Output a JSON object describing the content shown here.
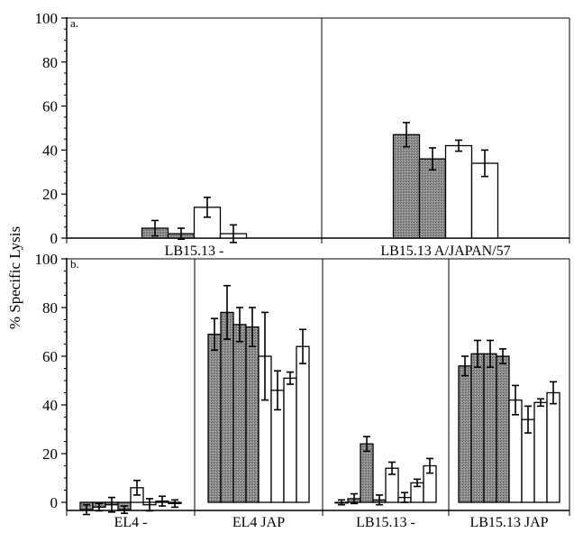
{
  "figure": {
    "ylabel": "% Specific Lysis"
  },
  "colors": {
    "shaded": "#8a8a8a",
    "open": "#ffffff",
    "line": "#000000"
  },
  "chart_data": [
    {
      "type": "bar",
      "panel_letter": "a.",
      "ylim": [
        0,
        100
      ],
      "yticks": [
        "0",
        "20",
        "40",
        "60",
        "80",
        "100"
      ],
      "groups": [
        {
          "label": "LB15.13 -",
          "bars": [
            {
              "value": 4.5,
              "err": 3.5,
              "fill": "shaded"
            },
            {
              "value": 2.0,
              "err": 2.5,
              "fill": "shaded"
            },
            {
              "value": 14.0,
              "err": 4.5,
              "fill": "open"
            },
            {
              "value": 2.0,
              "err": 4.0,
              "fill": "open"
            }
          ]
        },
        {
          "label": "LB15.13 A/JAPAN/57",
          "bars": [
            {
              "value": 47.0,
              "err": 5.5,
              "fill": "shaded"
            },
            {
              "value": 36.0,
              "err": 5.0,
              "fill": "shaded"
            },
            {
              "value": 42.0,
              "err": 2.5,
              "fill": "open"
            },
            {
              "value": 34.0,
              "err": 6.0,
              "fill": "open"
            }
          ]
        }
      ]
    },
    {
      "type": "bar",
      "panel_letter": "b.",
      "ylim": [
        -5,
        100
      ],
      "yticks": [
        "0",
        "20",
        "40",
        "60",
        "80",
        "100"
      ],
      "groups": [
        {
          "label": "EL4 -",
          "bars": [
            {
              "value": -3.0,
              "err": 2.0,
              "fill": "shaded"
            },
            {
              "value": -2.0,
              "err": 1.5,
              "fill": "shaded"
            },
            {
              "value": -1.0,
              "err": 3.0,
              "fill": "shaded"
            },
            {
              "value": -3.0,
              "err": 1.5,
              "fill": "shaded"
            },
            {
              "value": 6.0,
              "err": 3.0,
              "fill": "open"
            },
            {
              "value": -1.0,
              "err": 2.5,
              "fill": "open"
            },
            {
              "value": 0.5,
              "err": 2.0,
              "fill": "open"
            },
            {
              "value": -0.5,
              "err": 1.5,
              "fill": "open"
            }
          ]
        },
        {
          "label": "EL4 JAP",
          "bars": [
            {
              "value": 69.0,
              "err": 6.5,
              "fill": "shaded"
            },
            {
              "value": 78.0,
              "err": 11.0,
              "fill": "shaded"
            },
            {
              "value": 73.0,
              "err": 7.0,
              "fill": "shaded"
            },
            {
              "value": 72.0,
              "err": 8.0,
              "fill": "shaded"
            },
            {
              "value": 60.0,
              "err": 18.0,
              "fill": "open"
            },
            {
              "value": 46.0,
              "err": 8.0,
              "fill": "open"
            },
            {
              "value": 51.0,
              "err": 2.5,
              "fill": "open"
            },
            {
              "value": 64.0,
              "err": 7.0,
              "fill": "open"
            }
          ]
        },
        {
          "label": "LB15.13 -",
          "bars": [
            {
              "value": 0.0,
              "err": 1.0,
              "fill": "shaded"
            },
            {
              "value": 1.5,
              "err": 2.0,
              "fill": "shaded"
            },
            {
              "value": 24.0,
              "err": 3.0,
              "fill": "shaded"
            },
            {
              "value": 1.0,
              "err": 2.0,
              "fill": "shaded"
            },
            {
              "value": 14.0,
              "err": 2.5,
              "fill": "open"
            },
            {
              "value": 2.0,
              "err": 2.0,
              "fill": "open"
            },
            {
              "value": 8.0,
              "err": 1.5,
              "fill": "open"
            },
            {
              "value": 15.0,
              "err": 3.0,
              "fill": "open"
            }
          ]
        },
        {
          "label": "LB15.13 JAP",
          "bars": [
            {
              "value": 56.0,
              "err": 4.0,
              "fill": "shaded"
            },
            {
              "value": 61.0,
              "err": 5.5,
              "fill": "shaded"
            },
            {
              "value": 61.0,
              "err": 5.5,
              "fill": "shaded"
            },
            {
              "value": 60.0,
              "err": 3.0,
              "fill": "shaded"
            },
            {
              "value": 42.0,
              "err": 6.0,
              "fill": "open"
            },
            {
              "value": 34.0,
              "err": 5.5,
              "fill": "open"
            },
            {
              "value": 41.0,
              "err": 1.5,
              "fill": "open"
            },
            {
              "value": 45.0,
              "err": 4.5,
              "fill": "open"
            }
          ]
        }
      ]
    }
  ]
}
